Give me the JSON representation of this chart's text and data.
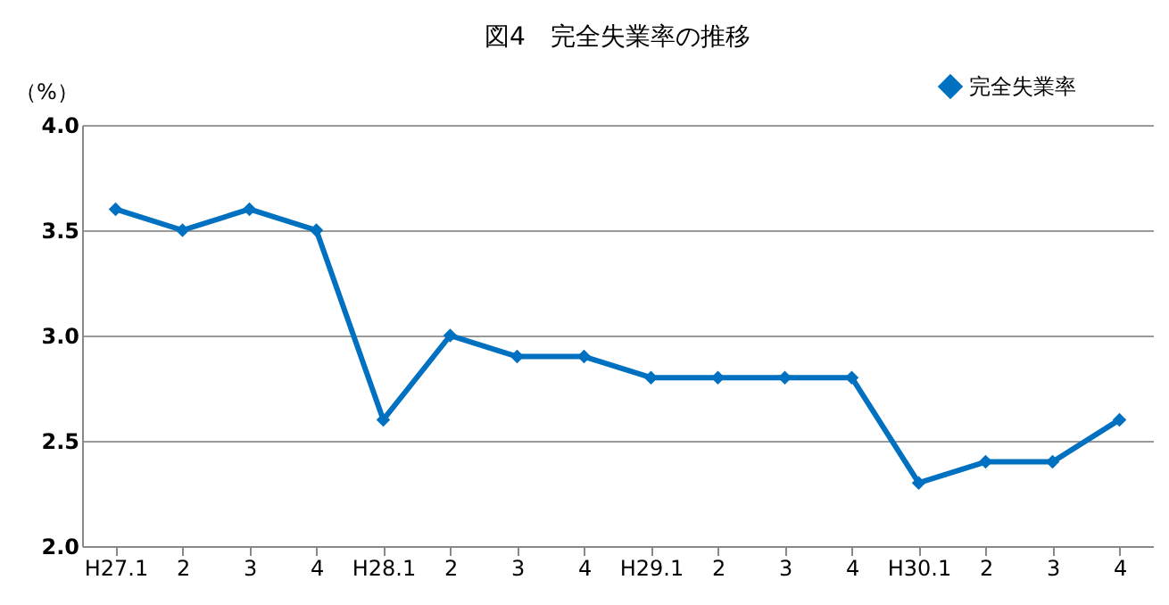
{
  "chart_data": {
    "type": "line",
    "title": "図4　完全失業率の推移",
    "ylabel": "（%）",
    "categories": [
      "H27.1",
      "2",
      "3",
      "4",
      "H28.1",
      "2",
      "3",
      "4",
      "H29.1",
      "2",
      "3",
      "4",
      "H30.1",
      "2",
      "3",
      "4"
    ],
    "series": [
      {
        "name": "完全失業率",
        "color": "#0070c0",
        "values": [
          3.6,
          3.5,
          3.6,
          3.5,
          2.6,
          3.0,
          2.9,
          2.9,
          2.8,
          2.8,
          2.8,
          2.8,
          2.3,
          2.4,
          2.4,
          2.6
        ]
      }
    ],
    "ylim": [
      2.0,
      4.0
    ],
    "yticks": [
      {
        "value": 2,
        "label": "2.0"
      },
      {
        "value": 2.5,
        "label": "2.5"
      },
      {
        "value": 3,
        "label": "3.0"
      },
      {
        "value": 3.5,
        "label": "3.5"
      },
      {
        "value": 4,
        "label": "4.0"
      }
    ],
    "grid": "y",
    "legend": "top right",
    "marker": "diamond",
    "line_style": "solid"
  }
}
